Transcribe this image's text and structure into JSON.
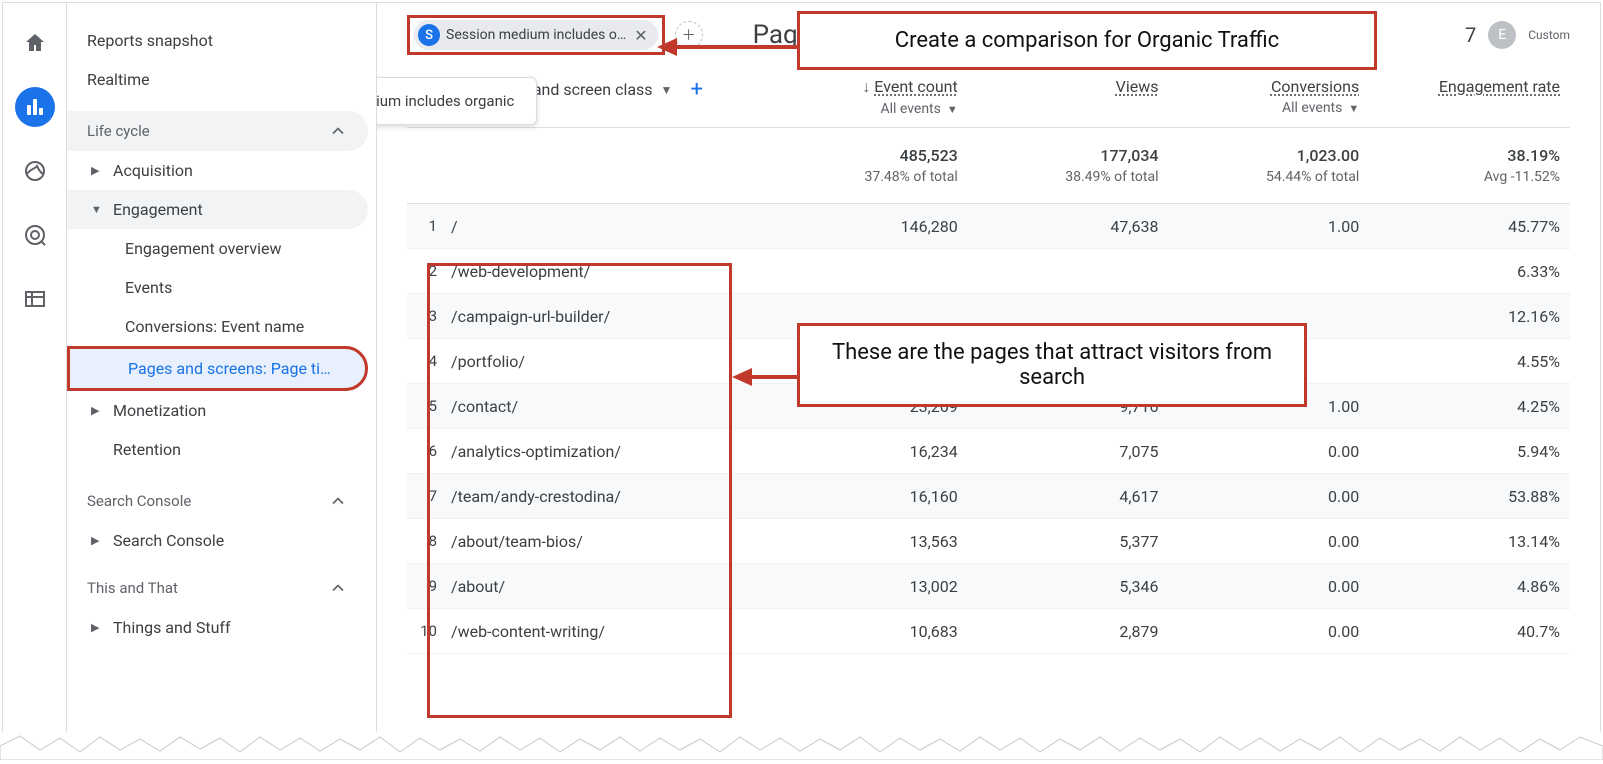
{
  "rail": {
    "icons": [
      "home",
      "bar-chart",
      "target",
      "cursor",
      "table"
    ],
    "active_index": 1
  },
  "sidebar": {
    "top": [
      "Reports snapshot",
      "Realtime"
    ],
    "sections": [
      {
        "title": "Life cycle",
        "open": true,
        "items": [
          {
            "label": "Acquisition",
            "expanded": false
          },
          {
            "label": "Engagement",
            "expanded": true,
            "active": true,
            "children": [
              "Engagement overview",
              "Events",
              "Conversions: Event name",
              "Pages and screens: Page ti…"
            ],
            "selected_child_index": 3
          },
          {
            "label": "Monetization",
            "expanded": false
          },
          {
            "label": "Retention",
            "expanded": null
          }
        ]
      },
      {
        "title": "Search Console",
        "open": true,
        "items": [
          {
            "label": "Search Console",
            "expanded": false
          }
        ]
      },
      {
        "title": "This and That",
        "open": true,
        "items": [
          {
            "label": "Things and Stuff",
            "expanded": false
          }
        ]
      }
    ]
  },
  "chip": {
    "badge": "S",
    "label": "Session medium includes o…",
    "tooltip": "Session medium includes organic"
  },
  "page_title": "Pages",
  "topbar": {
    "number": "7",
    "avatar": "E",
    "custom": "Custom"
  },
  "callout1": "Create a comparison for Organic Traffic",
  "callout2": "These are the pages that attract visitors from search",
  "dimension": {
    "label": "Page path and screen class"
  },
  "metrics": [
    {
      "header": "Event count",
      "sub": "All events",
      "has_dd": true,
      "has_sort": true
    },
    {
      "header": "Views",
      "sub": "",
      "has_dd": false
    },
    {
      "header": "Conversions",
      "sub": "All events",
      "has_dd": true
    },
    {
      "header": "Engagement rate",
      "sub": "",
      "has_dd": false
    }
  ],
  "totals": [
    {
      "value": "485,523",
      "sub": "37.48% of total"
    },
    {
      "value": "177,034",
      "sub": "38.49% of total"
    },
    {
      "value": "1,023.00",
      "sub": "54.44% of total"
    },
    {
      "value": "38.19%",
      "sub": "Avg -11.52%"
    }
  ],
  "rows": [
    {
      "n": 1,
      "path": "/",
      "cells": [
        "146,280",
        "47,638",
        "1.00",
        "45.77%"
      ]
    },
    {
      "n": 2,
      "path": "/web-development/",
      "cells": [
        "",
        "",
        "",
        "6.33%"
      ]
    },
    {
      "n": 3,
      "path": "/campaign-url-builder/",
      "cells": [
        "",
        "",
        "",
        "12.16%"
      ]
    },
    {
      "n": 4,
      "path": "/portfolio/",
      "cells": [
        "",
        "",
        "",
        "4.55%"
      ]
    },
    {
      "n": 5,
      "path": "/contact/",
      "cells": [
        "23,269",
        "9,716",
        "1.00",
        "4.25%"
      ]
    },
    {
      "n": 6,
      "path": "/analytics-optimization/",
      "cells": [
        "16,234",
        "7,075",
        "0.00",
        "5.94%"
      ]
    },
    {
      "n": 7,
      "path": "/team/andy-crestodina/",
      "cells": [
        "16,160",
        "4,617",
        "0.00",
        "53.88%"
      ]
    },
    {
      "n": 8,
      "path": "/about/team-bios/",
      "cells": [
        "13,563",
        "5,377",
        "0.00",
        "13.14%"
      ]
    },
    {
      "n": 9,
      "path": "/about/",
      "cells": [
        "13,002",
        "5,346",
        "0.00",
        "4.86%"
      ]
    },
    {
      "n": 10,
      "path": "/web-content-writing/",
      "cells": [
        "10,683",
        "2,879",
        "0.00",
        "40.7%"
      ]
    }
  ],
  "colors": {
    "accent": "#1a73e8",
    "annotation": "#c0392b"
  }
}
